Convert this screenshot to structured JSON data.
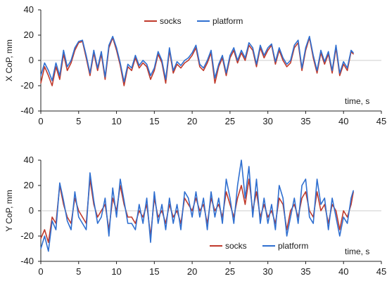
{
  "chart_data": [
    {
      "type": "line",
      "ylabel": "X CoP, mm",
      "xlabel": "time, s",
      "xlim": [
        0,
        45
      ],
      "ylim": [
        -40,
        40
      ],
      "xticks": [
        0,
        5,
        10,
        15,
        20,
        25,
        30,
        35,
        40,
        45
      ],
      "yticks": [
        -40,
        -20,
        0,
        20,
        40
      ],
      "grid": false,
      "legend": "top-center",
      "series": [
        {
          "name": "socks",
          "color": "#c0392b",
          "x": [
            0,
            0.5,
            1,
            1.5,
            2,
            2.5,
            3,
            3.5,
            4,
            4.5,
            5,
            5.5,
            6,
            6.5,
            7,
            7.5,
            8,
            8.5,
            9,
            9.5,
            10,
            10.5,
            11,
            11.5,
            12,
            12.5,
            13,
            13.5,
            14,
            14.5,
            15,
            15.5,
            16,
            16.5,
            17,
            17.5,
            18,
            18.5,
            19,
            19.5,
            20,
            20.5,
            21,
            21.5,
            22,
            22.5,
            23,
            23.5,
            24,
            24.5,
            25,
            25.5,
            26,
            26.5,
            27,
            27.5,
            28,
            28.5,
            29,
            29.5,
            30,
            30.5,
            31,
            31.5,
            32,
            32.5,
            33,
            33.5,
            34,
            34.5,
            35,
            35.5,
            36,
            36.5,
            37,
            37.5,
            38,
            38.5,
            39,
            39.5,
            40,
            40.5,
            41,
            41.3
          ],
          "y": [
            -18,
            -5,
            -12,
            -20,
            -5,
            -15,
            5,
            -8,
            -2,
            8,
            14,
            15,
            2,
            -12,
            6,
            -8,
            5,
            -15,
            10,
            18,
            8,
            -4,
            -20,
            -5,
            -8,
            2,
            -6,
            -2,
            -5,
            -15,
            -8,
            5,
            -2,
            -18,
            8,
            -10,
            -3,
            -6,
            -2,
            0,
            4,
            10,
            -5,
            -8,
            -2,
            6,
            -18,
            -5,
            2,
            -12,
            2,
            8,
            -2,
            6,
            0,
            12,
            8,
            -5,
            10,
            2,
            8,
            12,
            -3,
            8,
            0,
            -5,
            -2,
            10,
            14,
            -8,
            8,
            18,
            2,
            -10,
            6,
            -3,
            5,
            -10,
            10,
            -12,
            -3,
            -8,
            7,
            5
          ]
        },
        {
          "name": "platform",
          "color": "#2f6fd0",
          "x": [
            0,
            0.5,
            1,
            1.5,
            2,
            2.5,
            3,
            3.5,
            4,
            4.5,
            5,
            5.5,
            6,
            6.5,
            7,
            7.5,
            8,
            8.5,
            9,
            9.5,
            10,
            10.5,
            11,
            11.5,
            12,
            12.5,
            13,
            13.5,
            14,
            14.5,
            15,
            15.5,
            16,
            16.5,
            17,
            17.5,
            18,
            18.5,
            19,
            19.5,
            20,
            20.5,
            21,
            21.5,
            22,
            22.5,
            23,
            23.5,
            24,
            24.5,
            25,
            25.5,
            26,
            26.5,
            27,
            27.5,
            28,
            28.5,
            29,
            29.5,
            30,
            30.5,
            31,
            31.5,
            32,
            32.5,
            33,
            33.5,
            34,
            34.5,
            35,
            35.5,
            36,
            36.5,
            37,
            37.5,
            38,
            38.5,
            39,
            39.5,
            40,
            40.5,
            41,
            41.3
          ],
          "y": [
            -12,
            -2,
            -8,
            -16,
            -2,
            -12,
            8,
            -5,
            0,
            10,
            15,
            16,
            4,
            -10,
            8,
            -6,
            7,
            -13,
            12,
            19,
            10,
            -2,
            -17,
            -3,
            -6,
            4,
            -4,
            0,
            -3,
            -12,
            -6,
            7,
            0,
            -15,
            10,
            -8,
            -1,
            -4,
            0,
            2,
            6,
            12,
            -3,
            -6,
            0,
            8,
            -14,
            -3,
            4,
            -10,
            4,
            10,
            0,
            8,
            2,
            14,
            10,
            -3,
            12,
            4,
            10,
            13,
            -1,
            10,
            2,
            -3,
            0,
            12,
            16,
            -6,
            10,
            19,
            4,
            -8,
            8,
            -1,
            7,
            -8,
            12,
            -10,
            -1,
            -6,
            8,
            6
          ]
        }
      ]
    },
    {
      "type": "line",
      "ylabel": "Y CoP, mm",
      "xlabel": "time, s",
      "xlim": [
        0,
        45
      ],
      "ylim": [
        -40,
        40
      ],
      "xticks": [
        0,
        5,
        10,
        15,
        20,
        25,
        30,
        35,
        40,
        45
      ],
      "yticks": [
        -40,
        -20,
        0,
        20,
        40
      ],
      "grid": false,
      "legend": "bottom-center",
      "series": [
        {
          "name": "socks",
          "color": "#c0392b",
          "x": [
            0,
            0.5,
            1,
            1.5,
            2,
            2.5,
            3,
            3.5,
            4,
            4.5,
            5,
            5.5,
            6,
            6.5,
            7,
            7.5,
            8,
            8.5,
            9,
            9.5,
            10,
            10.5,
            11,
            11.5,
            12,
            12.5,
            13,
            13.5,
            14,
            14.5,
            15,
            15.5,
            16,
            16.5,
            17,
            17.5,
            18,
            18.5,
            19,
            19.5,
            20,
            20.5,
            21,
            21.5,
            22,
            22.5,
            23,
            23.5,
            24,
            24.5,
            25,
            25.5,
            26,
            26.5,
            27,
            27.5,
            28,
            28.5,
            29,
            29.5,
            30,
            30.5,
            31,
            31.5,
            32,
            32.5,
            33,
            33.5,
            34,
            34.5,
            35,
            35.5,
            36,
            36.5,
            37,
            37.5,
            38,
            38.5,
            39,
            39.5,
            40,
            40.5,
            41,
            41.3
          ],
          "y": [
            -22,
            -15,
            -25,
            -5,
            -10,
            20,
            5,
            -5,
            -10,
            10,
            0,
            -5,
            -10,
            25,
            5,
            -5,
            0,
            5,
            -15,
            10,
            0,
            20,
            5,
            -5,
            -5,
            -10,
            0,
            -5,
            5,
            -20,
            10,
            -5,
            0,
            -10,
            5,
            -5,
            0,
            -10,
            10,
            5,
            0,
            10,
            0,
            5,
            -10,
            10,
            0,
            5,
            -5,
            15,
            5,
            -5,
            10,
            20,
            5,
            25,
            0,
            15,
            -5,
            5,
            -5,
            0,
            -10,
            10,
            5,
            -15,
            0,
            5,
            -5,
            10,
            15,
            0,
            -5,
            15,
            0,
            5,
            -10,
            5,
            0,
            -15,
            0,
            -5,
            5,
            15
          ]
        },
        {
          "name": "platform",
          "color": "#2f6fd0",
          "x": [
            0,
            0.5,
            1,
            1.5,
            2,
            2.5,
            3,
            3.5,
            4,
            4.5,
            5,
            5.5,
            6,
            6.5,
            7,
            7.5,
            8,
            8.5,
            9,
            9.5,
            10,
            10.5,
            11,
            11.5,
            12,
            12.5,
            13,
            13.5,
            14,
            14.5,
            15,
            15.5,
            16,
            16.5,
            17,
            17.5,
            18,
            18.5,
            19,
            19.5,
            20,
            20.5,
            21,
            21.5,
            22,
            22.5,
            23,
            23.5,
            24,
            24.5,
            25,
            25.5,
            26,
            26.5,
            27,
            27.5,
            28,
            28.5,
            29,
            29.5,
            30,
            30.5,
            31,
            31.5,
            32,
            32.5,
            33,
            33.5,
            34,
            34.5,
            35,
            35.5,
            36,
            36.5,
            37,
            37.5,
            38,
            38.5,
            39,
            39.5,
            40,
            40.5,
            41,
            41.3
          ],
          "y": [
            -30,
            -20,
            -32,
            -8,
            -15,
            22,
            8,
            -8,
            -15,
            15,
            -5,
            -10,
            -15,
            30,
            8,
            -10,
            -5,
            10,
            -20,
            18,
            -5,
            25,
            8,
            -10,
            -10,
            -15,
            5,
            -10,
            10,
            -25,
            15,
            -10,
            5,
            -15,
            10,
            -10,
            5,
            -15,
            15,
            10,
            -5,
            15,
            -5,
            10,
            -15,
            15,
            -5,
            10,
            -10,
            25,
            10,
            -10,
            20,
            40,
            10,
            35,
            -5,
            25,
            -10,
            10,
            -10,
            5,
            -15,
            20,
            10,
            -20,
            -5,
            10,
            -10,
            20,
            25,
            -5,
            -10,
            25,
            5,
            10,
            -15,
            10,
            -5,
            -20,
            -5,
            -10,
            10,
            16
          ]
        }
      ]
    }
  ]
}
